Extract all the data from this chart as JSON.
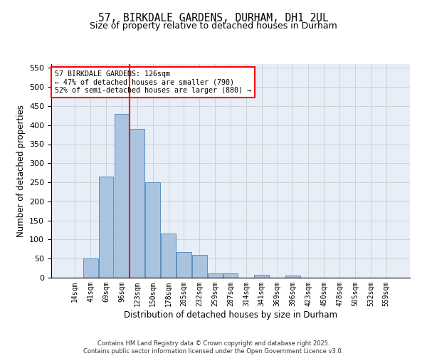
{
  "title": "57, BIRKDALE GARDENS, DURHAM, DH1 2UL",
  "subtitle": "Size of property relative to detached houses in Durham",
  "xlabel": "Distribution of detached houses by size in Durham",
  "ylabel": "Number of detached properties",
  "footer_line1": "Contains HM Land Registry data © Crown copyright and database right 2025.",
  "footer_line2": "Contains public sector information licensed under the Open Government Licence v3.0.",
  "categories": [
    "14sqm",
    "41sqm",
    "69sqm",
    "96sqm",
    "123sqm",
    "150sqm",
    "178sqm",
    "205sqm",
    "232sqm",
    "259sqm",
    "287sqm",
    "314sqm",
    "341sqm",
    "369sqm",
    "396sqm",
    "423sqm",
    "450sqm",
    "478sqm",
    "505sqm",
    "532sqm",
    "559sqm"
  ],
  "values": [
    0,
    50,
    265,
    430,
    390,
    250,
    115,
    68,
    60,
    12,
    12,
    0,
    8,
    0,
    6,
    0,
    0,
    0,
    0,
    0,
    0
  ],
  "bar_color": "#aac4e0",
  "bar_edge_color": "#5a8fc0",
  "annotation_text": "57 BIRKDALE GARDENS: 126sqm\n← 47% of detached houses are smaller (790)\n52% of semi-detached houses are larger (880) →",
  "annotation_box_color": "white",
  "annotation_box_edge_color": "red",
  "vline_x_index": 3.5,
  "vline_color": "red",
  "ylim": [
    0,
    560
  ],
  "yticks": [
    0,
    50,
    100,
    150,
    200,
    250,
    300,
    350,
    400,
    450,
    500,
    550
  ],
  "grid_color": "#cccccc",
  "bg_color": "#ffffff",
  "plot_bg_color": "#e8eef8"
}
